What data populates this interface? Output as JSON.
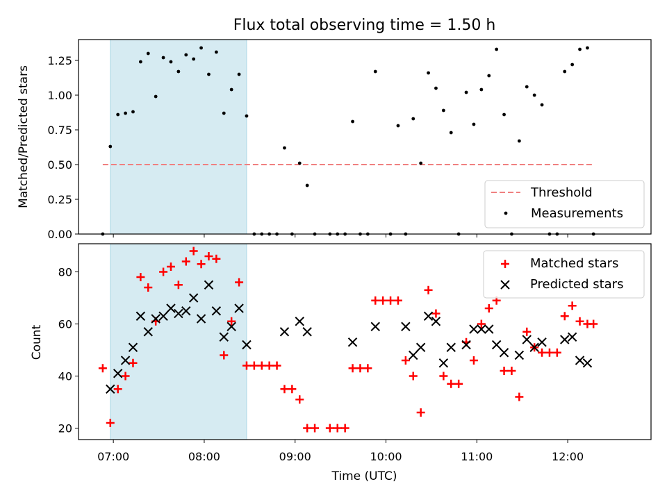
{
  "chart_data": {
    "title": "Flux total observing time = 1.50 h",
    "xlabel": "Time (UTC)",
    "x_ticks": [
      "07:00",
      "08:00",
      "09:00",
      "10:00",
      "11:00",
      "12:00"
    ],
    "x_range": [
      "06:37",
      "12:55"
    ],
    "shaded_interval": [
      "06:58",
      "08:28"
    ],
    "colors": {
      "shade": "#add8e6",
      "threshold": "#f08080",
      "matched": "#ff0000",
      "predicted": "#000000",
      "measurement": "#000000"
    },
    "panels": [
      {
        "type": "scatter",
        "ylabel": "Matched/Predicted stars",
        "ylim": [
          0,
          1.4
        ],
        "y_ticks": [
          "0.00",
          "0.25",
          "0.50",
          "0.75",
          "1.00",
          "1.25"
        ],
        "legend": {
          "placement": "lower-right",
          "entries": [
            "Threshold",
            "Measurements"
          ]
        },
        "threshold": {
          "name": "Threshold",
          "y": 0.5,
          "x_from": "06:53",
          "x_to": "12:17",
          "style": "dashed"
        },
        "series": [
          {
            "name": "Measurements",
            "marker": "dot",
            "points": [
              [
                "06:53",
                0.0
              ],
              [
                "06:58",
                0.63
              ],
              [
                "07:03",
                0.86
              ],
              [
                "07:08",
                0.87
              ],
              [
                "07:13",
                0.88
              ],
              [
                "07:18",
                1.24
              ],
              [
                "07:23",
                1.3
              ],
              [
                "07:28",
                0.99
              ],
              [
                "07:33",
                1.27
              ],
              [
                "07:38",
                1.24
              ],
              [
                "07:43",
                1.17
              ],
              [
                "07:48",
                1.29
              ],
              [
                "07:53",
                1.26
              ],
              [
                "07:58",
                1.34
              ],
              [
                "08:03",
                1.15
              ],
              [
                "08:08",
                1.31
              ],
              [
                "08:13",
                0.87
              ],
              [
                "08:18",
                1.04
              ],
              [
                "08:23",
                1.15
              ],
              [
                "08:28",
                0.85
              ],
              [
                "08:33",
                0.0
              ],
              [
                "08:38",
                0.0
              ],
              [
                "08:43",
                0.0
              ],
              [
                "08:48",
                0.0
              ],
              [
                "08:53",
                0.62
              ],
              [
                "08:58",
                0.0
              ],
              [
                "09:03",
                0.51
              ],
              [
                "09:08",
                0.35
              ],
              [
                "09:13",
                0.0
              ],
              [
                "09:23",
                0.0
              ],
              [
                "09:28",
                0.0
              ],
              [
                "09:33",
                0.0
              ],
              [
                "09:38",
                0.81
              ],
              [
                "09:43",
                0.0
              ],
              [
                "09:48",
                0.0
              ],
              [
                "09:53",
                1.17
              ],
              [
                "10:03",
                0.0
              ],
              [
                "10:08",
                0.78
              ],
              [
                "10:13",
                0.0
              ],
              [
                "10:18",
                0.83
              ],
              [
                "10:23",
                0.51
              ],
              [
                "10:28",
                1.16
              ],
              [
                "10:33",
                1.05
              ],
              [
                "10:38",
                0.89
              ],
              [
                "10:43",
                0.73
              ],
              [
                "10:48",
                0.0
              ],
              [
                "10:53",
                1.02
              ],
              [
                "10:58",
                0.79
              ],
              [
                "11:03",
                1.04
              ],
              [
                "11:08",
                1.14
              ],
              [
                "11:13",
                1.33
              ],
              [
                "11:18",
                0.86
              ],
              [
                "11:23",
                0.0
              ],
              [
                "11:28",
                0.67
              ],
              [
                "11:33",
                1.06
              ],
              [
                "11:38",
                1.0
              ],
              [
                "11:43",
                0.93
              ],
              [
                "11:48",
                0.0
              ],
              [
                "11:53",
                0.0
              ],
              [
                "11:58",
                1.17
              ],
              [
                "12:03",
                1.22
              ],
              [
                "12:08",
                1.33
              ],
              [
                "12:13",
                1.34
              ],
              [
                "12:17",
                0.0
              ]
            ]
          }
        ]
      },
      {
        "type": "scatter",
        "ylabel": "Count",
        "ylim": [
          15.6,
          90.8
        ],
        "y_ticks": [
          "20",
          "40",
          "60",
          "80"
        ],
        "legend": {
          "placement": "top-right",
          "entries": [
            "Matched stars",
            "Predicted stars"
          ]
        },
        "series": [
          {
            "name": "Matched stars",
            "marker": "plus",
            "points": [
              [
                "06:53",
                43
              ],
              [
                "06:58",
                22
              ],
              [
                "07:03",
                35
              ],
              [
                "07:08",
                40
              ],
              [
                "07:13",
                45
              ],
              [
                "07:18",
                78
              ],
              [
                "07:23",
                74
              ],
              [
                "07:28",
                61
              ],
              [
                "07:33",
                80
              ],
              [
                "07:38",
                82
              ],
              [
                "07:43",
                75
              ],
              [
                "07:48",
                84
              ],
              [
                "07:53",
                88
              ],
              [
                "07:58",
                83
              ],
              [
                "08:03",
                86
              ],
              [
                "08:08",
                85
              ],
              [
                "08:13",
                48
              ],
              [
                "08:18",
                61
              ],
              [
                "08:23",
                76
              ],
              [
                "08:28",
                44
              ],
              [
                "08:33",
                44
              ],
              [
                "08:38",
                44
              ],
              [
                "08:43",
                44
              ],
              [
                "08:48",
                44
              ],
              [
                "08:53",
                35
              ],
              [
                "08:58",
                35
              ],
              [
                "09:03",
                31
              ],
              [
                "09:08",
                20
              ],
              [
                "09:13",
                20
              ],
              [
                "09:23",
                20
              ],
              [
                "09:28",
                20
              ],
              [
                "09:33",
                20
              ],
              [
                "09:38",
                43
              ],
              [
                "09:43",
                43
              ],
              [
                "09:48",
                43
              ],
              [
                "09:53",
                69
              ],
              [
                "09:58",
                69
              ],
              [
                "10:03",
                69
              ],
              [
                "10:08",
                69
              ],
              [
                "10:13",
                46
              ],
              [
                "10:18",
                40
              ],
              [
                "10:23",
                26
              ],
              [
                "10:28",
                73
              ],
              [
                "10:33",
                64
              ],
              [
                "10:38",
                40
              ],
              [
                "10:43",
                37
              ],
              [
                "10:48",
                37
              ],
              [
                "10:53",
                53
              ],
              [
                "10:58",
                46
              ],
              [
                "11:03",
                60
              ],
              [
                "11:08",
                66
              ],
              [
                "11:13",
                69
              ],
              [
                "11:18",
                42
              ],
              [
                "11:23",
                42
              ],
              [
                "11:28",
                32
              ],
              [
                "11:33",
                57
              ],
              [
                "11:38",
                51
              ],
              [
                "11:43",
                49
              ],
              [
                "11:48",
                49
              ],
              [
                "11:53",
                49
              ],
              [
                "11:58",
                63
              ],
              [
                "12:03",
                67
              ],
              [
                "12:08",
                61
              ],
              [
                "12:13",
                60
              ],
              [
                "12:17",
                60
              ]
            ]
          },
          {
            "name": "Predicted stars",
            "marker": "cross",
            "points": [
              [
                "06:58",
                35
              ],
              [
                "07:03",
                41
              ],
              [
                "07:08",
                46
              ],
              [
                "07:13",
                51
              ],
              [
                "07:18",
                63
              ],
              [
                "07:23",
                57
              ],
              [
                "07:28",
                62
              ],
              [
                "07:33",
                63
              ],
              [
                "07:38",
                66
              ],
              [
                "07:43",
                64
              ],
              [
                "07:48",
                65
              ],
              [
                "07:53",
                70
              ],
              [
                "07:58",
                62
              ],
              [
                "08:03",
                75
              ],
              [
                "08:08",
                65
              ],
              [
                "08:13",
                55
              ],
              [
                "08:18",
                59
              ],
              [
                "08:23",
                66
              ],
              [
                "08:28",
                52
              ],
              [
                "08:53",
                57
              ],
              [
                "09:03",
                61
              ],
              [
                "09:08",
                57
              ],
              [
                "09:38",
                53
              ],
              [
                "09:53",
                59
              ],
              [
                "10:13",
                59
              ],
              [
                "10:18",
                48
              ],
              [
                "10:23",
                51
              ],
              [
                "10:28",
                63
              ],
              [
                "10:33",
                61
              ],
              [
                "10:38",
                45
              ],
              [
                "10:43",
                51
              ],
              [
                "10:53",
                52
              ],
              [
                "10:58",
                58
              ],
              [
                "11:03",
                58
              ],
              [
                "11:08",
                58
              ],
              [
                "11:13",
                52
              ],
              [
                "11:18",
                49
              ],
              [
                "11:28",
                48
              ],
              [
                "11:33",
                54
              ],
              [
                "11:38",
                51
              ],
              [
                "11:43",
                53
              ],
              [
                "11:58",
                54
              ],
              [
                "12:03",
                55
              ],
              [
                "12:08",
                46
              ],
              [
                "12:13",
                45
              ]
            ]
          }
        ]
      }
    ]
  }
}
